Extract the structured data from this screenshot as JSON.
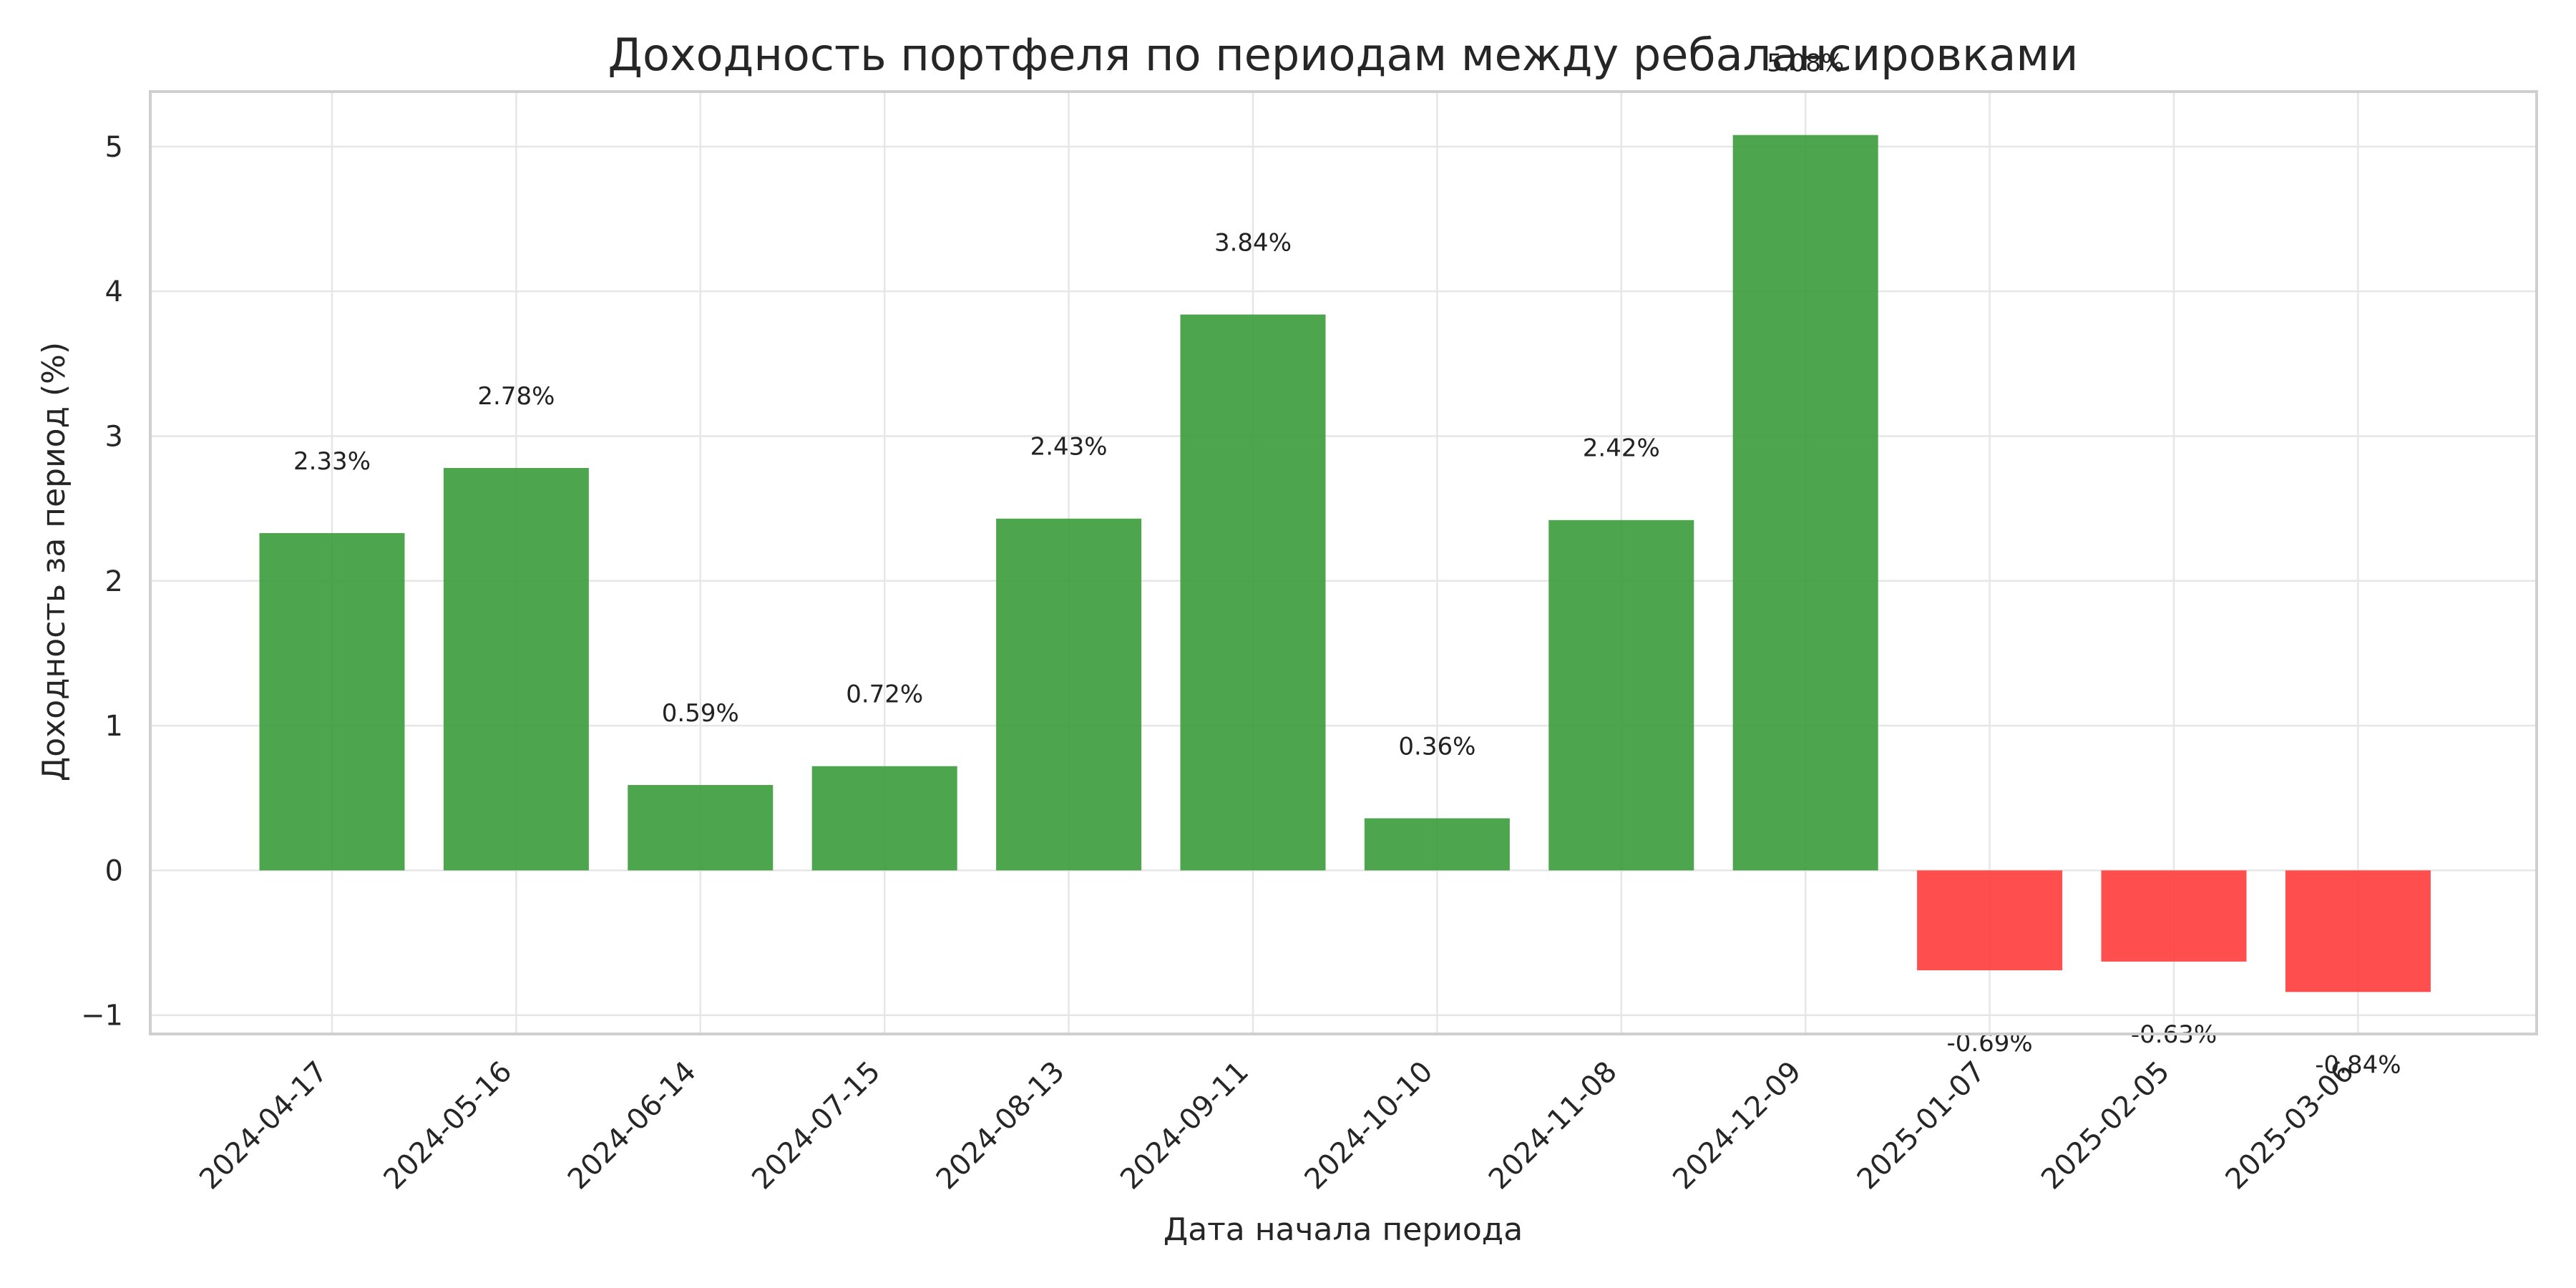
{
  "chart_data": {
    "type": "bar",
    "title": "Доходность портфеля по периодам между ребалансировками",
    "xlabel": "Дата начала периода",
    "ylabel": "Доходность за период (%)",
    "categories": [
      "2024-04-17",
      "2024-05-16",
      "2024-06-14",
      "2024-07-15",
      "2024-08-13",
      "2024-09-11",
      "2024-10-10",
      "2024-11-08",
      "2024-12-09",
      "2025-01-07",
      "2025-02-05",
      "2025-03-06"
    ],
    "values": [
      2.33,
      2.78,
      0.59,
      0.72,
      2.43,
      3.84,
      0.36,
      2.42,
      5.08,
      -0.69,
      -0.63,
      -0.84
    ],
    "data_labels": [
      "2.33%",
      "2.78%",
      "0.59%",
      "0.72%",
      "2.43%",
      "3.84%",
      "0.36%",
      "2.42%",
      "5.08%",
      "-0.69%",
      "-0.63%",
      "-0.84%"
    ],
    "ylim": [
      -1.13,
      5.38
    ],
    "yticks": [
      -1,
      0,
      1,
      2,
      3,
      4,
      5
    ],
    "grid": true,
    "colors": {
      "positive": "#3a9c3a",
      "negative": "#ff3b3b"
    }
  }
}
